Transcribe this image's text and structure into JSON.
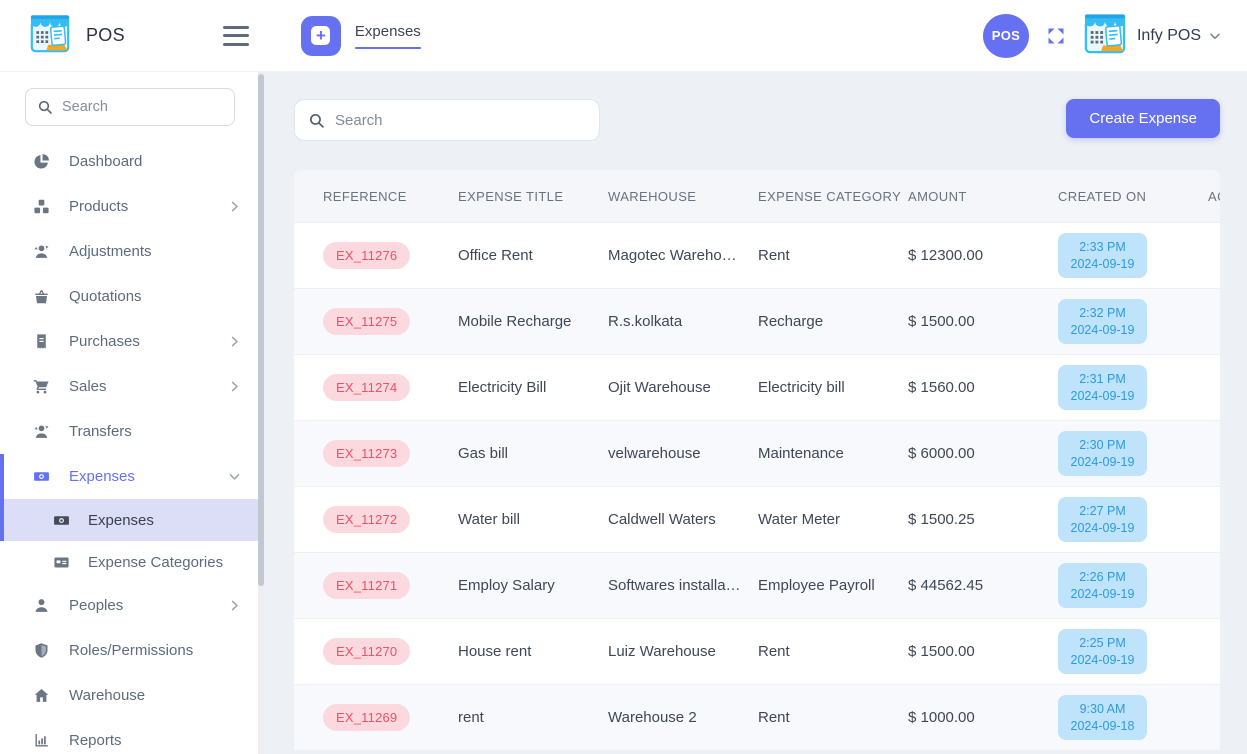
{
  "brand": {
    "name": "POS",
    "account_name": "Infy POS"
  },
  "header": {
    "tab_label": "Expenses",
    "pos_button_label": "POS"
  },
  "sidebar": {
    "search_placeholder": "Search",
    "items": [
      {
        "label": "Dashboard",
        "icon": "dashboard-icon"
      },
      {
        "label": "Products",
        "icon": "products-icon",
        "chevron": "right"
      },
      {
        "label": "Adjustments",
        "icon": "adjustments-icon"
      },
      {
        "label": "Quotations",
        "icon": "quotations-icon"
      },
      {
        "label": "Purchases",
        "icon": "purchases-icon",
        "chevron": "right"
      },
      {
        "label": "Sales",
        "icon": "sales-icon",
        "chevron": "right"
      },
      {
        "label": "Transfers",
        "icon": "transfers-icon"
      },
      {
        "label": "Expenses",
        "icon": "expenses-icon",
        "chevron": "down",
        "active": true,
        "children": [
          {
            "label": "Expenses",
            "icon": "expenses-icon",
            "active": true
          },
          {
            "label": "Expense Categories",
            "icon": "category-icon"
          }
        ]
      },
      {
        "label": "Peoples",
        "icon": "peoples-icon",
        "chevron": "right"
      },
      {
        "label": "Roles/Permissions",
        "icon": "roles-icon"
      },
      {
        "label": "Warehouse",
        "icon": "warehouse-icon"
      },
      {
        "label": "Reports",
        "icon": "reports-icon"
      }
    ]
  },
  "toolbar": {
    "search_placeholder": "Search",
    "create_button_label": "Create Expense"
  },
  "table": {
    "columns": [
      "REFERENCE",
      "EXPENSE TITLE",
      "WAREHOUSE",
      "EXPENSE CATEGORY",
      "AMOUNT",
      "CREATED ON",
      "ACTION"
    ],
    "rows": [
      {
        "reference": "EX_11276",
        "title": "Office Rent",
        "warehouse": "Magotec Wareho…",
        "category": "Rent",
        "amount": "$ 12300.00",
        "time": "2:33 PM",
        "date": "2024-09-19"
      },
      {
        "reference": "EX_11275",
        "title": "Mobile Recharge",
        "warehouse": "R.s.kolkata",
        "category": "Recharge",
        "amount": "$ 1500.00",
        "time": "2:32 PM",
        "date": "2024-09-19"
      },
      {
        "reference": "EX_11274",
        "title": "Electricity Bill",
        "warehouse": "Ojit Warehouse",
        "category": "Electricity bill",
        "amount": "$ 1560.00",
        "time": "2:31 PM",
        "date": "2024-09-19"
      },
      {
        "reference": "EX_11273",
        "title": "Gas bill",
        "warehouse": "velwarehouse",
        "category": "Maintenance",
        "amount": "$ 6000.00",
        "time": "2:30 PM",
        "date": "2024-09-19"
      },
      {
        "reference": "EX_11272",
        "title": "Water bill",
        "warehouse": "Caldwell Waters",
        "category": "Water Meter",
        "amount": "$ 1500.25",
        "time": "2:27 PM",
        "date": "2024-09-19"
      },
      {
        "reference": "EX_11271",
        "title": "Employ Salary",
        "warehouse": "Softwares installa…",
        "category": "Employee Payroll",
        "amount": "$ 44562.45",
        "time": "2:26 PM",
        "date": "2024-09-19"
      },
      {
        "reference": "EX_11270",
        "title": "House rent",
        "warehouse": "Luiz Warehouse",
        "category": "Rent",
        "amount": "$ 1500.00",
        "time": "2:25 PM",
        "date": "2024-09-19"
      },
      {
        "reference": "EX_11269",
        "title": "rent",
        "warehouse": "Warehouse 2",
        "category": "Rent",
        "amount": "$ 1000.00",
        "time": "9:30 AM",
        "date": "2024-09-18"
      }
    ]
  },
  "colors": {
    "accent": "#6571f1",
    "reference_badge_bg": "#fcd9de",
    "reference_badge_text": "#ee5065",
    "created_badge_bg": "#bee3fa",
    "created_badge_text": "#2d9bdf",
    "sub_active_bg": "#dcdef8"
  }
}
